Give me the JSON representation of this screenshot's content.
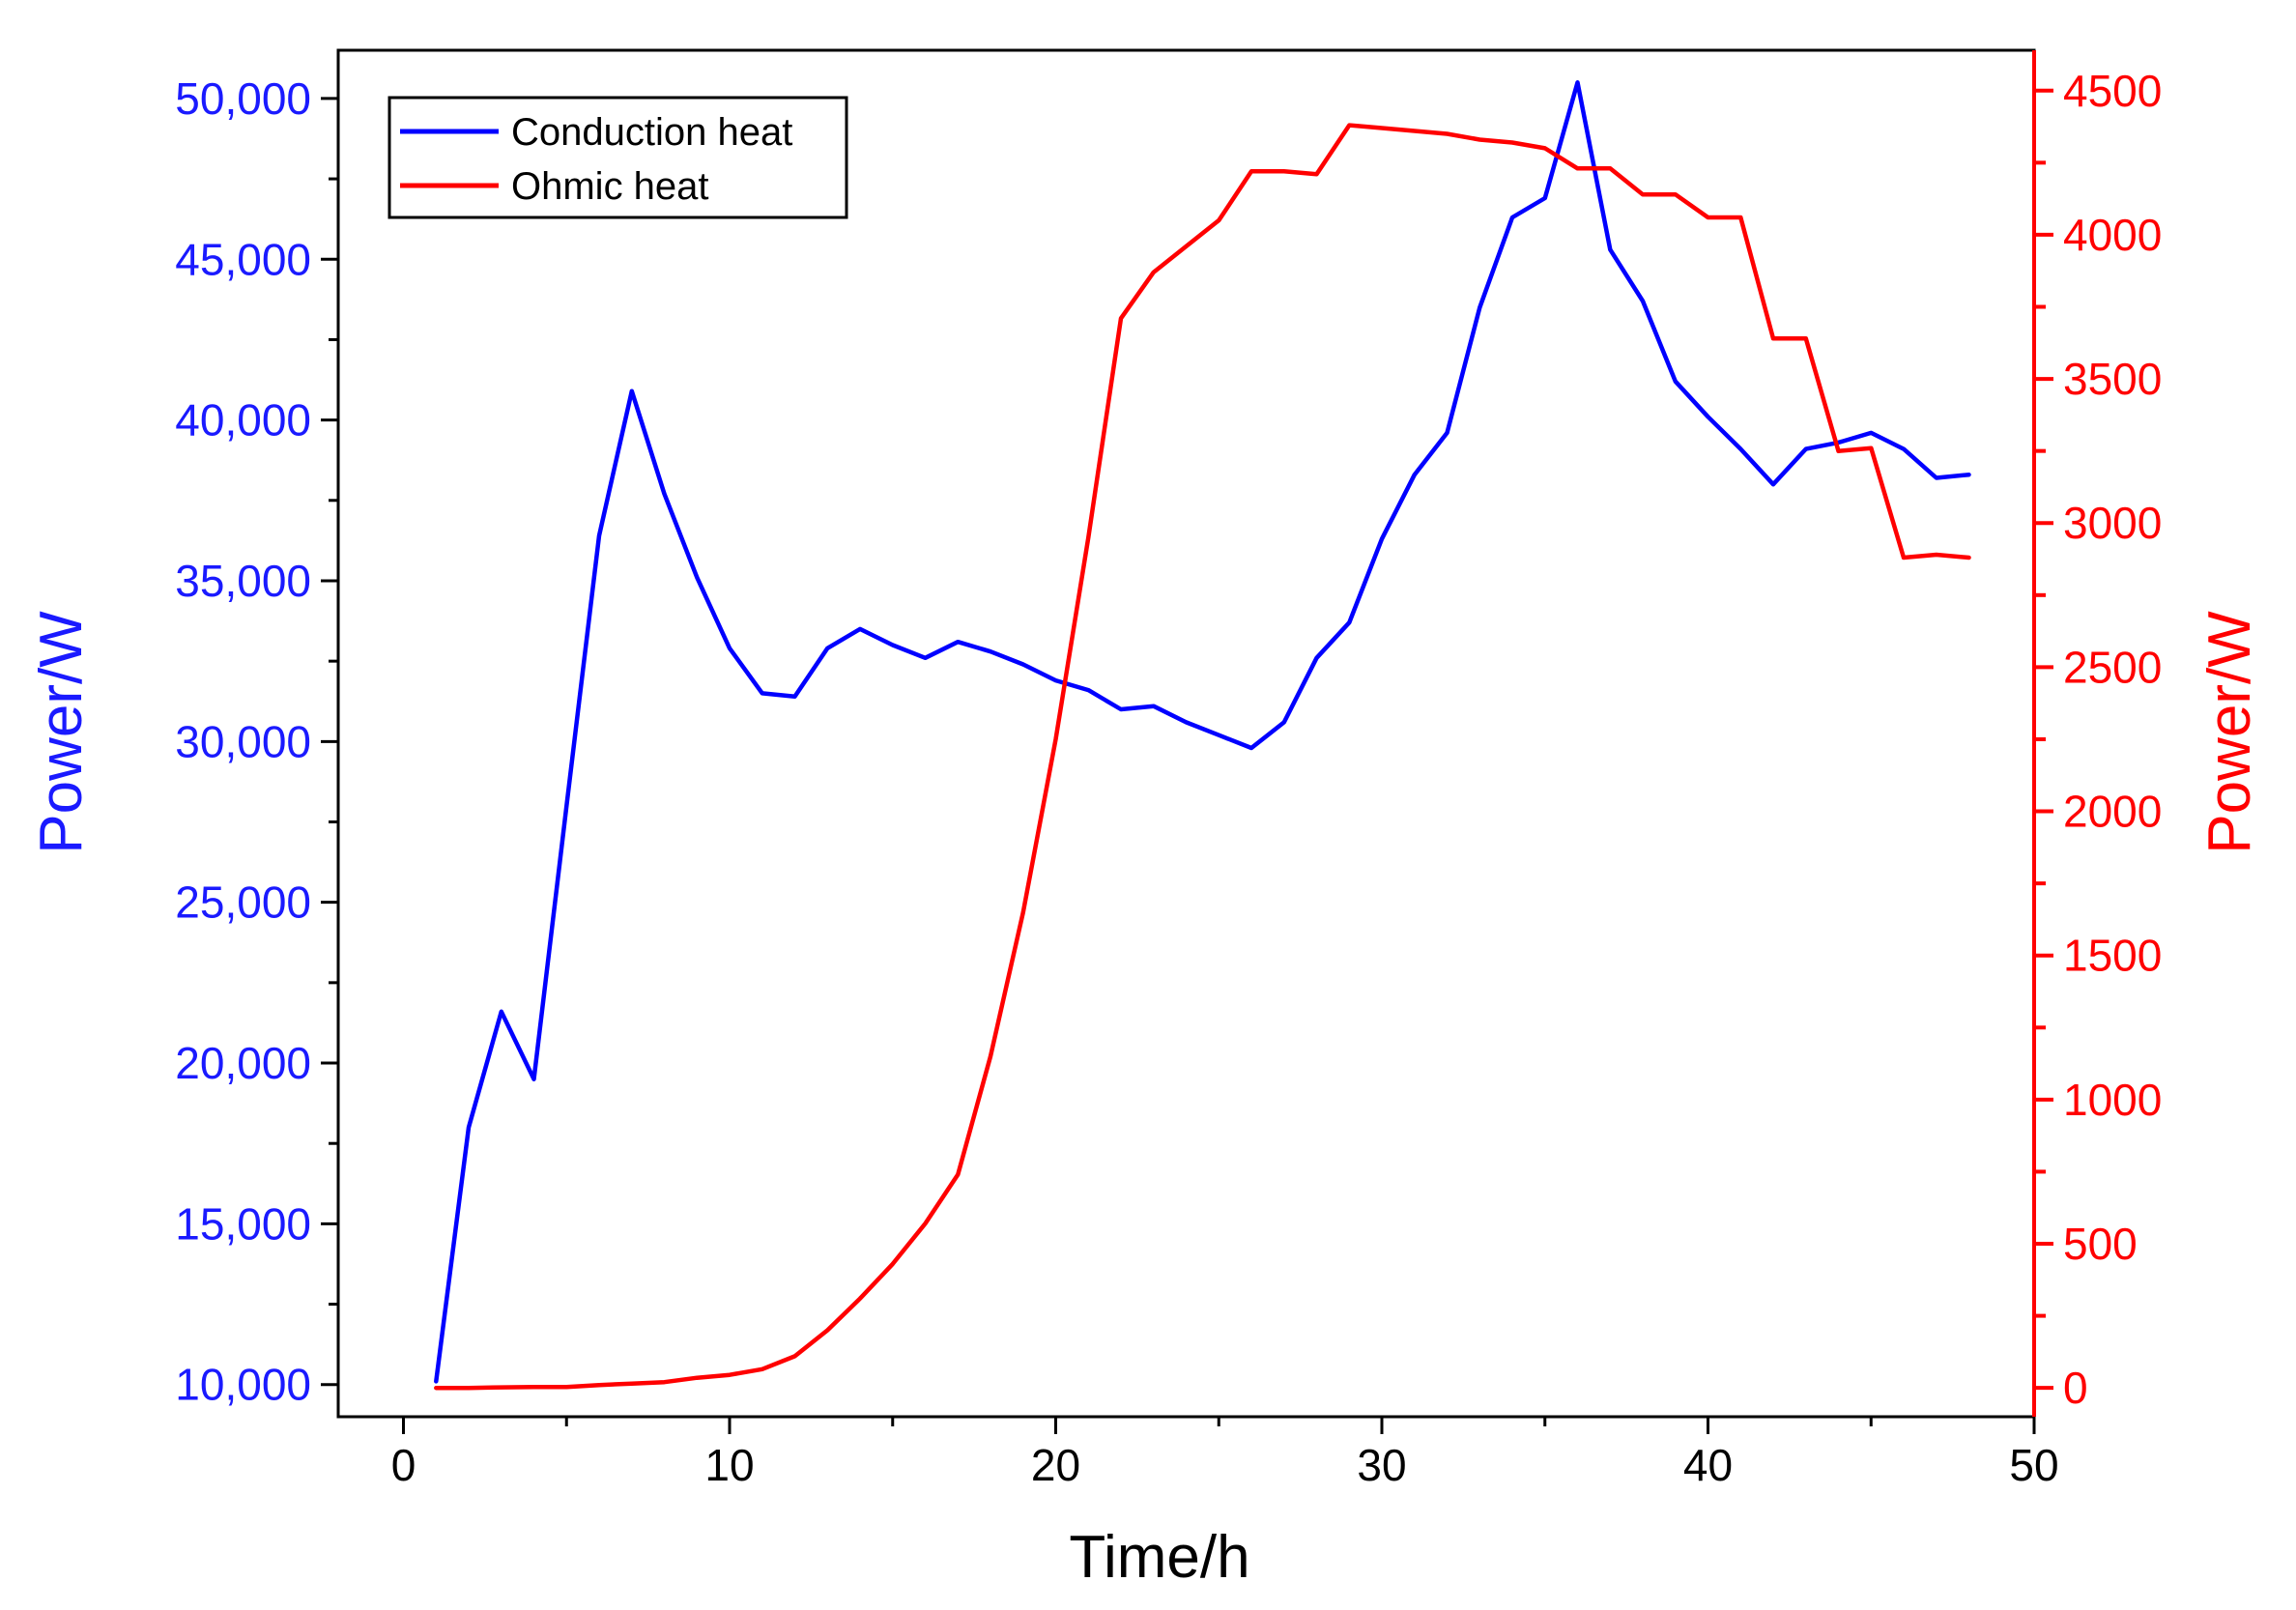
{
  "chart_data": {
    "type": "line",
    "title": "",
    "xlabel": "Time/h",
    "ylabel_left": "Power/W",
    "ylabel_right": "Power/W",
    "xlim": [
      -2,
      50
    ],
    "ylim_left": [
      9000,
      51500
    ],
    "ylim_right": [
      -100,
      4640
    ],
    "x_ticks": [
      0,
      10,
      20,
      30,
      40,
      50
    ],
    "x_tick_labels": [
      "0",
      "10",
      "20",
      "30",
      "40",
      "50"
    ],
    "y_left_ticks": [
      10000,
      15000,
      20000,
      25000,
      30000,
      35000,
      40000,
      45000,
      50000
    ],
    "y_left_tick_labels": [
      "10,000",
      "15,000",
      "20,000",
      "25,000",
      "30,000",
      "35,000",
      "40,000",
      "45,000",
      "50,000"
    ],
    "y_right_ticks": [
      0,
      500,
      1000,
      1500,
      2000,
      2500,
      3000,
      3500,
      4000,
      4500
    ],
    "y_right_tick_labels": [
      "0",
      "500",
      "1000",
      "1500",
      "2000",
      "2500",
      "3000",
      "3500",
      "4000",
      "4500"
    ],
    "grid": false,
    "legend_position": "top-left",
    "colors": {
      "left_axis": "#1a1aff",
      "right_axis": "#ff0000",
      "frame": "#000000"
    },
    "x": [
      1,
      2,
      3,
      4,
      5,
      6,
      7,
      8,
      9,
      10,
      11,
      12,
      13,
      14,
      15,
      16,
      17,
      18,
      19,
      20,
      21,
      22,
      23,
      24,
      25,
      26,
      27,
      28,
      29,
      30,
      31,
      32,
      33,
      34,
      35,
      36,
      37,
      38,
      39,
      40,
      41,
      42,
      43,
      44,
      45,
      46,
      47,
      48
    ],
    "series": [
      {
        "name": "Conduction heat",
        "axis": "left",
        "color": "#0000ff",
        "values": [
          10100,
          18000,
          21600,
          19500,
          28000,
          36400,
          40900,
          37700,
          35100,
          32900,
          31500,
          31400,
          32900,
          33500,
          33000,
          32600,
          33100,
          32800,
          32400,
          31900,
          31600,
          31000,
          31100,
          30600,
          30200,
          29800,
          30600,
          32600,
          33700,
          36300,
          38300,
          39600,
          43500,
          46300,
          46900,
          50500,
          45300,
          43700,
          41200,
          40100,
          39100,
          38000,
          39100,
          39300,
          39600,
          39100,
          38200,
          38300
        ]
      },
      {
        "name": "Ohmic heat",
        "axis": "right",
        "color": "#ff0000",
        "values": [
          0,
          0,
          2,
          3,
          3,
          10,
          15,
          20,
          35,
          45,
          65,
          110,
          200,
          310,
          430,
          570,
          740,
          1150,
          1650,
          2250,
          2950,
          3710,
          3870,
          3960,
          4050,
          4220,
          4220,
          4210,
          4380,
          4370,
          4360,
          4350,
          4330,
          4320,
          4300,
          4230,
          4230,
          4140,
          4140,
          4060,
          4060,
          3640,
          3640,
          3250,
          3260,
          2880,
          2890,
          2880
        ]
      }
    ]
  }
}
